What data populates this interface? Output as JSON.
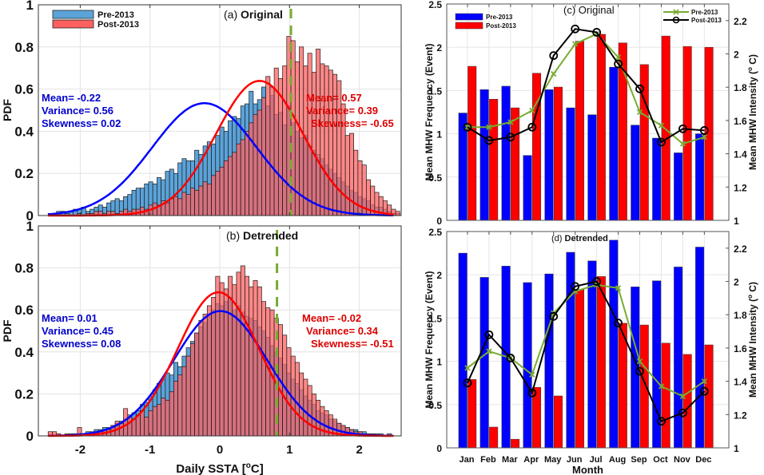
{
  "chart_data": [
    {
      "id": "a",
      "type": "histogram",
      "panel_label": "(a)",
      "title": "Original",
      "xlabel": "",
      "ylabel": "PDF",
      "xlim": [
        -2.6,
        2.6
      ],
      "ylim": [
        0,
        1
      ],
      "xticks": [
        -2,
        -1,
        0,
        1,
        2
      ],
      "yticks": [
        0,
        0.2,
        0.4,
        0.6,
        0.8,
        1
      ],
      "ytick_labels": [
        "0",
        "0.2",
        "0.4",
        "0.6",
        "0.8",
        "1"
      ],
      "grid": true,
      "threshold_x": 1.02,
      "threshold_color": "#77ac30",
      "legend": {
        "placement": "top-left",
        "entries": [
          {
            "label": "Pre-2013",
            "color": "#5ba3d9"
          },
          {
            "label": "Post-2013",
            "color": "#ff6060"
          }
        ]
      },
      "bin_start": -2.46,
      "bin_width": 0.06,
      "series": [
        {
          "name": "Pre-2013",
          "color": "#5ba3d9",
          "fit_color": "#0000ff",
          "stats": {
            "mean": -0.22,
            "variance": 0.56,
            "skewness": 0.02
          },
          "stats_text": [
            "Mean= -0.22",
            "Variance= 0.56",
            "Skewness= 0.02"
          ],
          "bins": [
            0.01,
            0.01,
            0.02,
            0.02,
            0.01,
            0.02,
            0.03,
            0.03,
            0.04,
            0.02,
            0.03,
            0.04,
            0.05,
            0.04,
            0.06,
            0.07,
            0.08,
            0.07,
            0.09,
            0.1,
            0.12,
            0.13,
            0.13,
            0.15,
            0.16,
            0.15,
            0.18,
            0.17,
            0.21,
            0.22,
            0.2,
            0.25,
            0.27,
            0.26,
            0.26,
            0.31,
            0.29,
            0.33,
            0.35,
            0.34,
            0.38,
            0.42,
            0.4,
            0.45,
            0.47,
            0.46,
            0.52,
            0.53,
            0.59,
            0.53,
            0.55,
            0.61,
            0.52,
            0.57,
            0.48,
            0.49,
            0.43,
            0.52,
            0.44,
            0.4,
            0.37,
            0.38,
            0.33,
            0.31,
            0.29,
            0.27,
            0.24,
            0.22,
            0.2,
            0.18,
            0.16,
            0.14,
            0.12,
            0.11,
            0.09,
            0.08,
            0.07,
            0.05,
            0.04,
            0.04,
            0.03,
            0.02,
            0.01,
            0.01
          ]
        },
        {
          "name": "Post-2013",
          "color": "#ff6060",
          "fit_color": "#ff0000",
          "stats": {
            "mean": 0.57,
            "variance": 0.39,
            "skewness": -0.65
          },
          "stats_text": [
            "Mean= 0.57",
            "Variance= 0.39",
            "Skewness= -0.65"
          ],
          "bins": [
            0,
            0,
            0,
            0,
            0,
            0,
            0,
            0.01,
            0,
            0.01,
            0.01,
            0.02,
            0.02,
            0.01,
            0.02,
            0.02,
            0.01,
            0.02,
            0.03,
            0.02,
            0.03,
            0.03,
            0.04,
            0.03,
            0.05,
            0.06,
            0.05,
            0.07,
            0.06,
            0.08,
            0.09,
            0.08,
            0.11,
            0.1,
            0.13,
            0.12,
            0.14,
            0.16,
            0.15,
            0.19,
            0.21,
            0.23,
            0.26,
            0.28,
            0.3,
            0.34,
            0.36,
            0.4,
            0.44,
            0.48,
            0.5,
            0.56,
            0.66,
            0.61,
            0.7,
            0.65,
            0.71,
            0.85,
            0.83,
            0.73,
            0.8,
            0.71,
            0.77,
            0.68,
            0.79,
            0.72,
            0.71,
            0.69,
            0.67,
            0.64,
            0.53,
            0.38,
            0.39,
            0.31,
            0.26,
            0.24,
            0.17,
            0.14,
            0.11,
            0.09,
            0.07,
            0.05,
            0.03,
            0.02
          ]
        }
      ]
    },
    {
      "id": "b",
      "type": "histogram",
      "panel_label": "(b)",
      "title": "Detrended",
      "xlabel": "Daily SSTA [°C]",
      "xlabel_parts": [
        "Daily SSTA [",
        "o",
        "C]"
      ],
      "ylabel": "PDF",
      "xlim": [
        -2.6,
        2.6
      ],
      "ylim": [
        0,
        1
      ],
      "xticks": [
        -2,
        -1,
        0,
        1,
        2
      ],
      "xtick_labels": [
        "-2",
        "-1",
        "0",
        "1",
        "2"
      ],
      "yticks": [
        0,
        0.2,
        0.4,
        0.6,
        0.8,
        1
      ],
      "ytick_labels": [
        "0",
        "0.2",
        "0.4",
        "0.6",
        "0.8",
        "1"
      ],
      "grid": true,
      "threshold_x": 0.82,
      "threshold_color": "#77ac30",
      "bin_start": -2.46,
      "bin_width": 0.06,
      "series": [
        {
          "name": "Pre-2013",
          "color": "#5ba3d9",
          "fit_color": "#0000ff",
          "stats": {
            "mean": 0.01,
            "variance": 0.45,
            "skewness": 0.08
          },
          "stats_text": [
            "Mean= 0.01",
            "Variance= 0.45",
            "Skewness= 0.08"
          ],
          "bins": [
            0,
            0,
            0,
            0,
            0,
            0.01,
            0.01,
            0.01,
            0.01,
            0.02,
            0.02,
            0.03,
            0.03,
            0.04,
            0.04,
            0.05,
            0.06,
            0.07,
            0.08,
            0.1,
            0.11,
            0.12,
            0.15,
            0.16,
            0.19,
            0.22,
            0.25,
            0.27,
            0.3,
            0.29,
            0.35,
            0.33,
            0.38,
            0.42,
            0.45,
            0.49,
            0.52,
            0.54,
            0.57,
            0.6,
            0.63,
            0.62,
            0.64,
            0.66,
            0.6,
            0.62,
            0.59,
            0.57,
            0.56,
            0.55,
            0.52,
            0.5,
            0.47,
            0.43,
            0.4,
            0.37,
            0.34,
            0.3,
            0.27,
            0.25,
            0.22,
            0.19,
            0.17,
            0.15,
            0.12,
            0.11,
            0.1,
            0.08,
            0.07,
            0.06,
            0.05,
            0.04,
            0.03,
            0.03,
            0.02,
            0.02,
            0.01,
            0.01,
            0.01,
            0.01,
            0,
            0.01,
            0,
            0
          ]
        },
        {
          "name": "Post-2013",
          "color": "#ff6060",
          "fit_color": "#ff0000",
          "stats": {
            "mean": -0.02,
            "variance": 0.34,
            "skewness": -0.51
          },
          "stats_text": [
            "Mean= -0.02",
            "Variance= 0.34",
            "Skewness= -0.51"
          ],
          "bins": [
            0.02,
            0.02,
            0.01,
            0,
            0.01,
            0,
            0.01,
            0.04,
            0,
            0.01,
            0.01,
            0.02,
            0.02,
            0.03,
            0.03,
            0.05,
            0.07,
            0.06,
            0.13,
            0.09,
            0.08,
            0.1,
            0.12,
            0.09,
            0.12,
            0.14,
            0.15,
            0.18,
            0.17,
            0.21,
            0.26,
            0.29,
            0.33,
            0.38,
            0.44,
            0.49,
            0.55,
            0.58,
            0.62,
            0.66,
            0.76,
            0.73,
            0.7,
            0.76,
            0.72,
            0.78,
            0.81,
            0.76,
            0.71,
            0.74,
            0.71,
            0.64,
            0.61,
            0.6,
            0.56,
            0.53,
            0.48,
            0.42,
            0.38,
            0.35,
            0.3,
            0.27,
            0.24,
            0.2,
            0.17,
            0.14,
            0.12,
            0.1,
            0.08,
            0.06,
            0.05,
            0.04,
            0.03,
            0.02,
            0.02,
            0.01,
            0.01,
            0.01,
            0,
            0,
            0,
            0,
            0,
            0
          ]
        }
      ]
    },
    {
      "id": "c",
      "type": "bar+line",
      "panel_label": "(c)",
      "title": "Original",
      "categories": [
        "Jan",
        "Feb",
        "Mar",
        "Apr",
        "May",
        "Jun",
        "Jul",
        "Aug",
        "Sep",
        "Oct",
        "Nov",
        "Dec"
      ],
      "ylabel": "Mean MHW Frequency (Event)",
      "ylabel_right": "Mean MHW Intensity (° C)",
      "ylabel_right_parts": [
        "Mean MHW Intensity (",
        "o",
        " C)"
      ],
      "ylim": [
        0,
        2.5
      ],
      "yticks": [
        0,
        0.5,
        1,
        1.5,
        2,
        2.5
      ],
      "ytick_labels": [
        "0",
        "0.5",
        "1",
        "1.5",
        "2",
        "2.5"
      ],
      "ylim_right": [
        1,
        2.3
      ],
      "yticks_right": [
        1,
        1.2,
        1.4,
        1.6,
        1.8,
        2,
        2.2
      ],
      "ytick_labels_right": [
        "1",
        "1.2",
        "1.4",
        "1.6",
        "1.8",
        "2",
        "2.2"
      ],
      "grid": true,
      "bar_legend": {
        "placement": "top-left",
        "entries": [
          {
            "label": "Pre-2013",
            "color": "#0000ff"
          },
          {
            "label": "Post-2013",
            "color": "#ff0000"
          }
        ]
      },
      "line_legend": {
        "placement": "top-right",
        "entries": [
          {
            "label": "Pre-2013",
            "color": "#77ac30",
            "marker": "x"
          },
          {
            "label": "Post-2013",
            "color": "#000000",
            "marker": "o"
          }
        ]
      },
      "bar_series": [
        {
          "name": "Pre-2013",
          "color": "#0000ff",
          "values": [
            1.24,
            1.51,
            1.55,
            0.75,
            1.51,
            1.3,
            1.22,
            1.77,
            1.1,
            0.95,
            0.78,
            1.0
          ]
        },
        {
          "name": "Post-2013",
          "color": "#ff0000",
          "values": [
            1.78,
            1.4,
            1.3,
            1.7,
            1.54,
            2.07,
            2.15,
            2.05,
            1.8,
            2.13,
            2.01,
            2.0
          ]
        }
      ],
      "line_series": [
        {
          "name": "Pre-2013",
          "color": "#77ac30",
          "marker": "x",
          "values": [
            1.56,
            1.56,
            1.59,
            1.66,
            1.88,
            2.06,
            2.12,
            1.98,
            1.65,
            1.57,
            1.46,
            1.5
          ]
        },
        {
          "name": "Post-2013",
          "color": "#000000",
          "marker": "o",
          "values": [
            1.56,
            1.48,
            1.5,
            1.56,
            1.99,
            2.15,
            2.13,
            1.94,
            1.79,
            1.47,
            1.55,
            1.54
          ]
        }
      ]
    },
    {
      "id": "d",
      "type": "bar+line",
      "panel_label": "(d)",
      "title": "Detrended",
      "categories": [
        "Jan",
        "Feb",
        "Mar",
        "Apr",
        "May",
        "Jun",
        "Jul",
        "Aug",
        "Sep",
        "Oct",
        "Nov",
        "Dec"
      ],
      "xlabel": "Month",
      "ylabel": "Mean MHW Frequency (Event)",
      "ylabel_right": "Mean MHW Intensity (° C)",
      "ylabel_right_parts": [
        "Mean MHW Intensity (",
        "o",
        " C)"
      ],
      "ylim": [
        0,
        2.5
      ],
      "yticks": [
        0,
        0.5,
        1,
        1.5,
        2,
        2.5
      ],
      "ytick_labels": [
        "0",
        "0.5",
        "1",
        "1.5",
        "2",
        "2.5"
      ],
      "ylim_right": [
        1,
        2.3
      ],
      "yticks_right": [
        1,
        1.2,
        1.4,
        1.6,
        1.8,
        2,
        2.2
      ],
      "ytick_labels_right": [
        "1",
        "1.2",
        "1.4",
        "1.6",
        "1.8",
        "2",
        "2.2"
      ],
      "grid": true,
      "bar_series": [
        {
          "name": "Pre-2013",
          "color": "#0000ff",
          "values": [
            2.25,
            1.97,
            2.1,
            1.91,
            2.01,
            2.26,
            2.16,
            2.4,
            1.86,
            1.93,
            2.09,
            2.32
          ]
        },
        {
          "name": "Post-2013",
          "color": "#ff0000",
          "values": [
            0.79,
            0.24,
            0.1,
            0.7,
            0.6,
            1.83,
            1.98,
            1.44,
            1.42,
            1.21,
            1.08,
            1.19
          ]
        }
      ],
      "line_series": [
        {
          "name": "Pre-2013",
          "color": "#77ac30",
          "marker": "x",
          "values": [
            1.48,
            1.58,
            1.54,
            1.44,
            1.81,
            1.94,
            1.98,
            1.96,
            1.52,
            1.37,
            1.31,
            1.4
          ]
        },
        {
          "name": "Post-2013",
          "color": "#000000",
          "marker": "o",
          "values": [
            1.39,
            1.68,
            1.54,
            1.33,
            1.79,
            1.97,
            2.0,
            1.75,
            1.46,
            1.16,
            1.21,
            1.34
          ]
        }
      ]
    }
  ]
}
